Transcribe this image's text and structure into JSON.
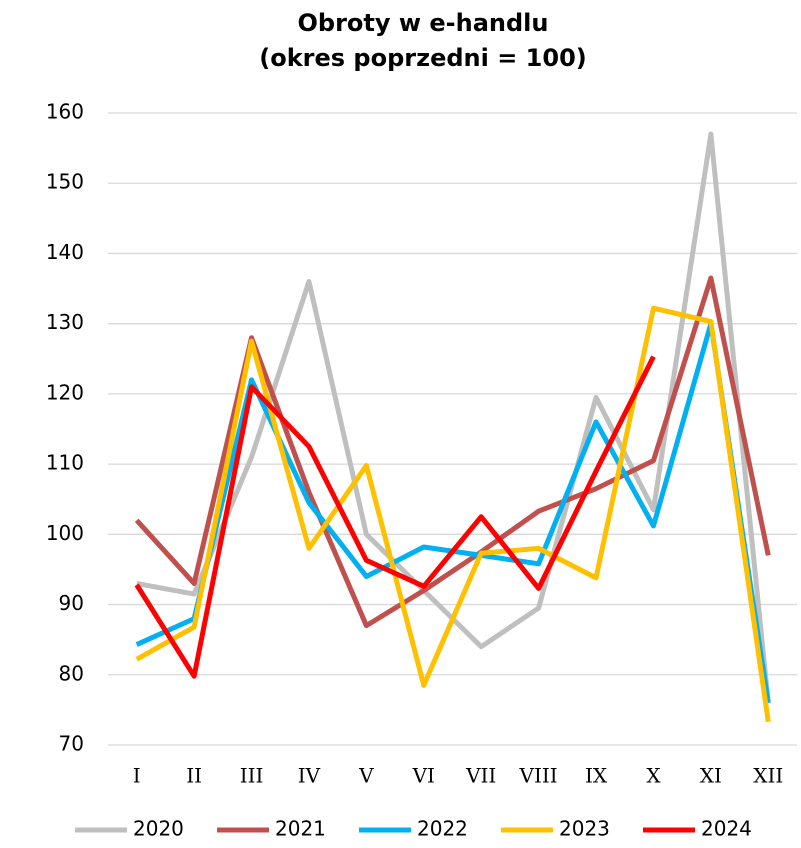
{
  "chart_data": {
    "type": "line",
    "title": "Obroty w e-handlu",
    "subtitle": "(okres poprzedni = 100)",
    "categories": [
      "I",
      "II",
      "III",
      "IV",
      "V",
      "VI",
      "VII",
      "VIII",
      "IX",
      "X",
      "XI",
      "XII"
    ],
    "series": [
      {
        "name": "2020",
        "color": "#bfbfbf",
        "values": [
          93,
          91.5,
          111,
          136,
          100,
          92,
          84,
          89.5,
          119.5,
          103.5,
          157,
          76
        ]
      },
      {
        "name": "2021",
        "color": "#c0504d",
        "values": [
          102,
          93,
          128,
          106,
          87,
          92,
          97.5,
          103.3,
          106.5,
          110.5,
          136.5,
          97
        ]
      },
      {
        "name": "2022",
        "color": "#00b0f0",
        "values": [
          84.3,
          88,
          122,
          104.5,
          94,
          98.2,
          97,
          95.8,
          116,
          101.2,
          130,
          76
        ]
      },
      {
        "name": "2023",
        "color": "#ffc000",
        "values": [
          82.2,
          86.8,
          127.5,
          98,
          109.8,
          78.5,
          97.3,
          98,
          93.8,
          132.2,
          130.3,
          73.3
        ]
      },
      {
        "name": "2024",
        "color": "#ff0000",
        "values": [
          92.8,
          79.8,
          121,
          112.5,
          96.3,
          92.6,
          102.5,
          92.3,
          109,
          125.3,
          null,
          null
        ]
      }
    ],
    "ylim": [
      70,
      160
    ],
    "yticks": [
      70,
      80,
      90,
      100,
      110,
      120,
      130,
      140,
      150,
      160
    ],
    "grid": true,
    "legend": "bottom"
  }
}
